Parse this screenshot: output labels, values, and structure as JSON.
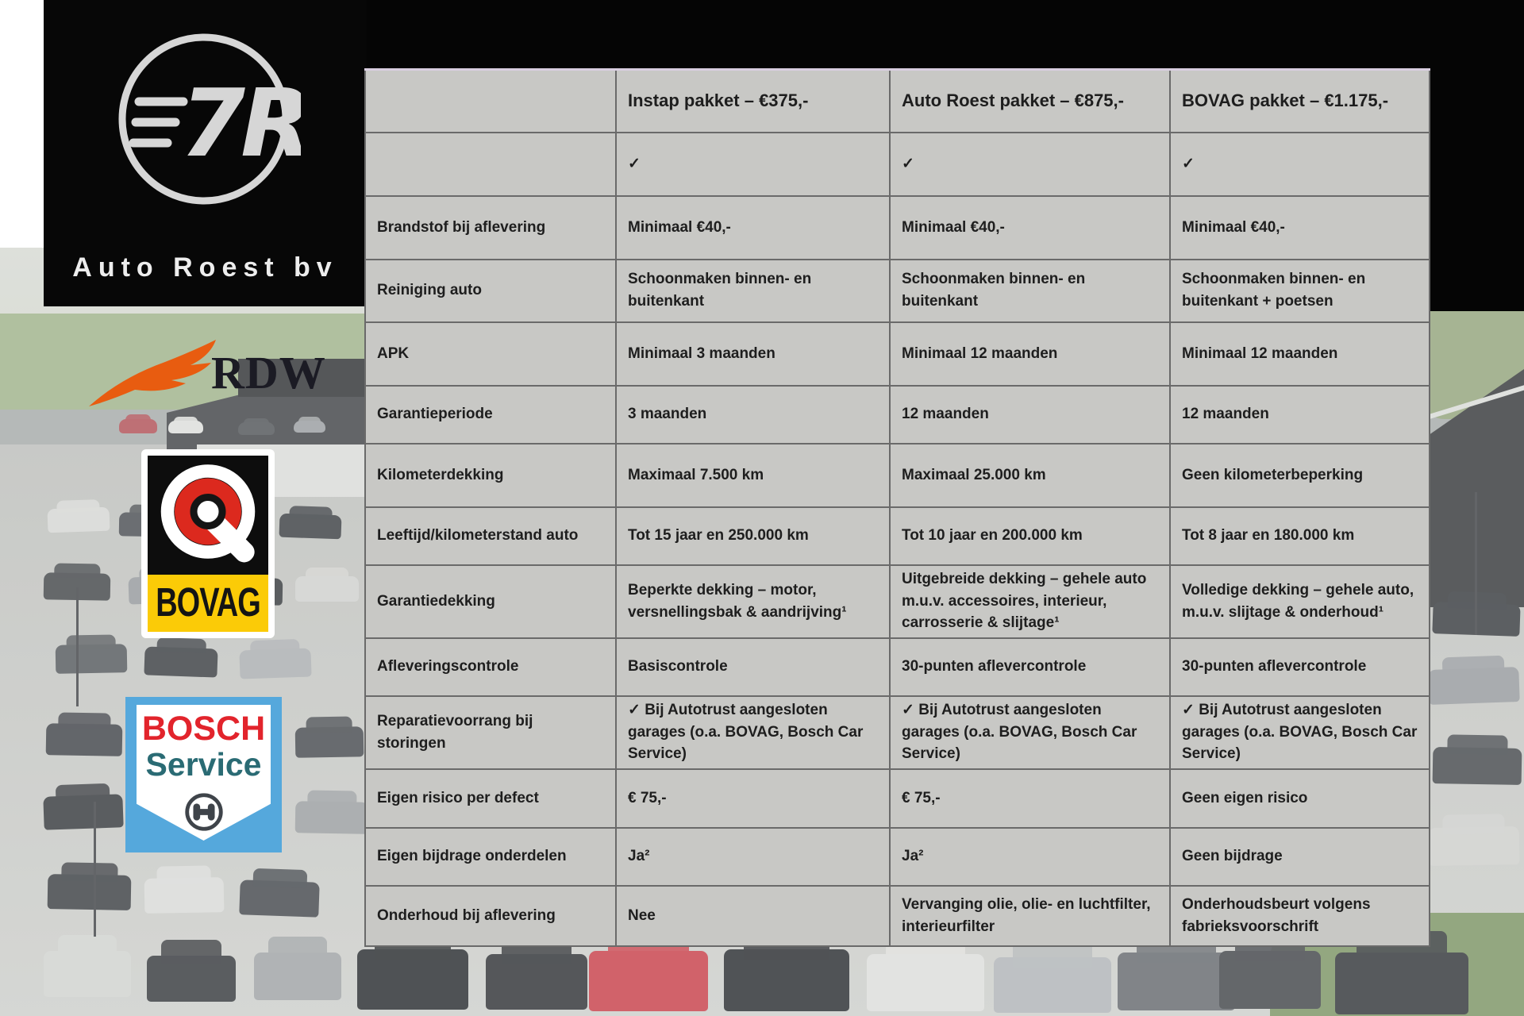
{
  "branding": {
    "company": "Auto Roest bv",
    "monogram": "7R",
    "rdw": "RDW",
    "bovag": "BOVAG",
    "bosch_line1": "BOSCH",
    "bosch_line2": "Service"
  },
  "colors": {
    "rdw_orange": "#E85C10",
    "bovag_red": "#DC291E",
    "bovag_yellow": "#FBCB07",
    "bosch_blue": "#55A8DC",
    "bosch_red": "#E2242C",
    "bosch_teal": "#2A6B74",
    "table_bg": "#C8C8C5",
    "table_border": "#6A6A6A",
    "panel_black": "#070707"
  },
  "table": {
    "columns": [
      "",
      "Instap pakket – €375,-",
      "Auto Roest pakket – €875,-",
      "BOVAG pakket – €1.175,-"
    ],
    "rows": [
      {
        "label": "",
        "cells": [
          "✓",
          "✓",
          "✓"
        ]
      },
      {
        "label": "Brandstof bij aflevering",
        "cells": [
          "Minimaal €40,-",
          "Minimaal €40,-",
          "Minimaal €40,-"
        ]
      },
      {
        "label": "Reiniging auto",
        "cells": [
          "Schoonmaken binnen- en buitenkant",
          "Schoonmaken binnen- en buitenkant",
          "Schoonmaken binnen- en buitenkant + poetsen"
        ]
      },
      {
        "label": "APK",
        "cells": [
          "Minimaal 3 maanden",
          "Minimaal 12 maanden",
          "Minimaal 12 maanden"
        ]
      },
      {
        "label": "Garantieperiode",
        "cells": [
          "3 maanden",
          "12 maanden",
          "12 maanden"
        ]
      },
      {
        "label": "Kilometerdekking",
        "cells": [
          "Maximaal 7.500 km",
          "Maximaal 25.000 km",
          "Geen kilometerbeperking"
        ]
      },
      {
        "label": "Leeftijd/kilometerstand auto",
        "cells": [
          "Tot 15 jaar en 250.000 km",
          "Tot 10 jaar en 200.000 km",
          "Tot 8 jaar en 180.000 km"
        ]
      },
      {
        "label": "Garantiedekking",
        "cells": [
          "Beperkte dekking – motor, versnellingsbak & aandrijving¹",
          "Uitgebreide dekking – gehele auto m.u.v. accessoires, interieur, carrosserie & slijtage¹",
          "Volledige dekking – gehele auto, m.u.v. slijtage & onderhoud¹"
        ]
      },
      {
        "label": "Afleveringscontrole",
        "cells": [
          "Basiscontrole",
          "30-punten aflevercontrole",
          "30-punten aflevercontrole"
        ]
      },
      {
        "label": "Reparatievoorrang bij storingen",
        "cells": [
          "✓ Bij Autotrust aangesloten garages (o.a. BOVAG, Bosch Car Service)",
          "✓ Bij Autotrust aangesloten garages (o.a. BOVAG, Bosch Car Service)",
          "✓ Bij Autotrust aangesloten garages (o.a. BOVAG, Bosch Car Service)"
        ]
      },
      {
        "label": "Eigen risico per defect",
        "cells": [
          "€ 75,-",
          "€ 75,-",
          "Geen eigen risico"
        ]
      },
      {
        "label": "Eigen bijdrage onderdelen",
        "cells": [
          "Ja²",
          "Ja²",
          "Geen bijdrage"
        ]
      },
      {
        "label": "Onderhoud bij aflevering",
        "cells": [
          "Nee",
          "Vervanging olie, olie- en luchtfilter, interieurfilter",
          "Onderhoudsbeurt volgens fabrieksvoorschrift"
        ]
      }
    ]
  }
}
